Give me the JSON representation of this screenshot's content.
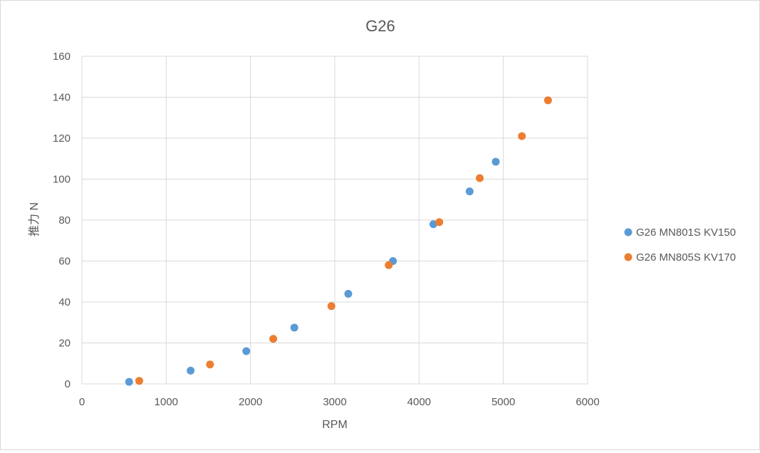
{
  "chart_data": {
    "type": "scatter",
    "title": "G26",
    "xlabel": "RPM",
    "ylabel": "推力 N",
    "xlim": [
      0,
      6000
    ],
    "ylim": [
      0,
      160
    ],
    "x_ticks": [
      0,
      1000,
      2000,
      3000,
      4000,
      5000,
      6000
    ],
    "y_ticks": [
      0,
      20,
      40,
      60,
      80,
      100,
      120,
      140,
      160
    ],
    "grid": true,
    "legend_position": "right",
    "series": [
      {
        "name": "G26 MN801S KV150",
        "color": "#5b9bd5",
        "points": [
          {
            "x": 560,
            "y": 1
          },
          {
            "x": 1290,
            "y": 6.5
          },
          {
            "x": 1950,
            "y": 16
          },
          {
            "x": 2520,
            "y": 27.5
          },
          {
            "x": 3160,
            "y": 44
          },
          {
            "x": 3690,
            "y": 60
          },
          {
            "x": 4170,
            "y": 78
          },
          {
            "x": 4600,
            "y": 94
          },
          {
            "x": 4910,
            "y": 108.5
          }
        ]
      },
      {
        "name": "G26 MN805S KV170",
        "color": "#ed7d31",
        "points": [
          {
            "x": 680,
            "y": 1.5
          },
          {
            "x": 1520,
            "y": 9.5
          },
          {
            "x": 2270,
            "y": 22
          },
          {
            "x": 2960,
            "y": 38
          },
          {
            "x": 3640,
            "y": 58
          },
          {
            "x": 4240,
            "y": 79
          },
          {
            "x": 4720,
            "y": 100.5
          },
          {
            "x": 5220,
            "y": 121
          },
          {
            "x": 5530,
            "y": 138.5
          }
        ]
      }
    ]
  }
}
